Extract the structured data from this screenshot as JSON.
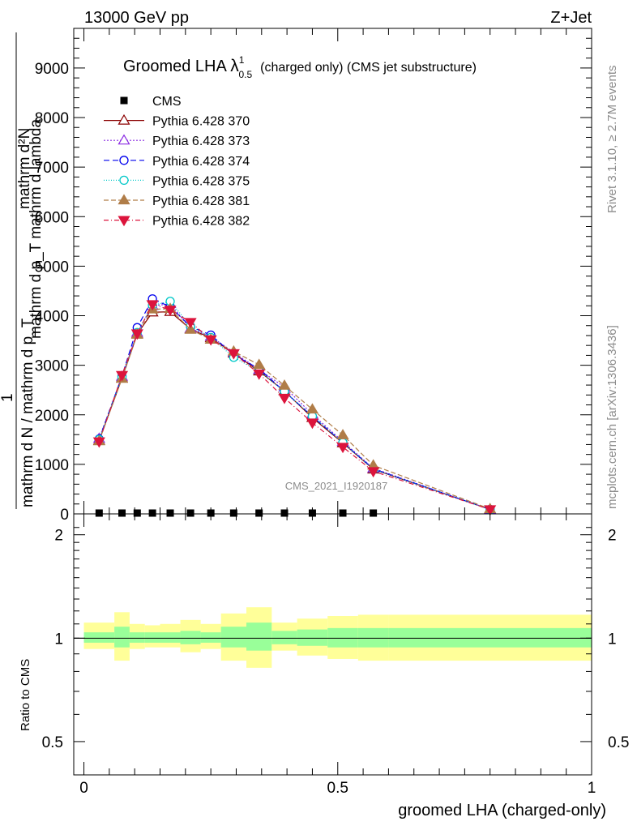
{
  "header": {
    "left": "13000 GeV pp",
    "right": "Z+Jet"
  },
  "side_labels": {
    "rivet": "Rivet 3.1.10, ≥ 2.7M events",
    "mcplots": "mcplots.cern.ch [arXiv:1306.3436]"
  },
  "watermark": "CMS_2021_I1920187",
  "chart_data": [
    {
      "type": "line",
      "title_main": "Groomed LHA ",
      "title_lambda": "λ",
      "title_sup": "1",
      "title_sub": "0.5",
      "title_rest": "(charged only) (CMS jet substructure)",
      "ylabel_lines": [
        "mathrm d²N",
        "mathrm d p_T mathrm d lambda",
        "1",
        "mathrm d N / mathrm d p_T"
      ],
      "ylim": [
        0,
        9800
      ],
      "yticks": [
        0,
        1000,
        2000,
        3000,
        4000,
        5000,
        6000,
        7000,
        8000,
        9000
      ],
      "ytick_labels": [
        "0",
        "1000",
        "2000",
        "3000",
        "4000",
        "5000",
        "6000",
        "7000",
        "8000",
        "9000"
      ],
      "xlim": [
        -0.02,
        1.0
      ],
      "x": [
        0.03,
        0.075,
        0.105,
        0.135,
        0.17,
        0.21,
        0.25,
        0.295,
        0.345,
        0.395,
        0.45,
        0.51,
        0.57,
        0.8
      ],
      "series": [
        {
          "name": "CMS",
          "color": "#000000",
          "marker": "square",
          "dash": "",
          "values": [
            0,
            0,
            0,
            0,
            0,
            0,
            0,
            0,
            0,
            0,
            0,
            0,
            0,
            null
          ]
        },
        {
          "name": "Pythia 6.428 370",
          "color": "#8b0000",
          "marker": "triangle-up-open",
          "dash": "",
          "values": [
            1480,
            2740,
            3630,
            4070,
            4080,
            3730,
            3550,
            3240,
            2880,
            2480,
            1940,
            1430,
            900,
            90
          ]
        },
        {
          "name": "Pythia 6.428 373",
          "color": "#8a2be2",
          "marker": "triangle-up-open",
          "dash": "2,2",
          "values": [
            1520,
            2770,
            3660,
            4200,
            4240,
            3740,
            3580,
            3260,
            2910,
            2560,
            2010,
            1460,
            920,
            90
          ]
        },
        {
          "name": "Pythia 6.428 374",
          "color": "#0000ee",
          "marker": "circle-open",
          "dash": "7,4",
          "values": [
            1510,
            2780,
            3760,
            4340,
            4180,
            3780,
            3610,
            3210,
            2930,
            2470,
            1970,
            1440,
            910,
            90
          ]
        },
        {
          "name": "Pythia 6.428 375",
          "color": "#00c8c8",
          "marker": "circle-open",
          "dash": "1,2",
          "values": [
            1500,
            2760,
            3660,
            4210,
            4290,
            3790,
            3560,
            3160,
            2880,
            2470,
            1970,
            1440,
            900,
            90
          ]
        },
        {
          "name": "Pythia 6.428 381",
          "color": "#b07d48",
          "marker": "triangle-up",
          "dash": "6,3",
          "values": [
            1470,
            2730,
            3620,
            4130,
            4140,
            3720,
            3520,
            3280,
            3010,
            2590,
            2110,
            1590,
            980,
            100
          ]
        },
        {
          "name": "Pythia 6.428 382",
          "color": "#dc143c",
          "marker": "triangle-down",
          "dash": "6,3,1,3",
          "values": [
            1460,
            2800,
            3640,
            4230,
            4120,
            3870,
            3520,
            3240,
            2830,
            2340,
            1840,
            1350,
            860,
            90
          ]
        }
      ]
    },
    {
      "type": "area",
      "ylabel": "Ratio to CMS",
      "ylim": [
        0.4,
        2.3
      ],
      "log_scale": true,
      "yticks": [
        0.5,
        1,
        2
      ],
      "ytick_labels": [
        "0.5",
        "1",
        "2"
      ],
      "xlabel": "groomed LHA (charged-only)",
      "xticks": [
        0,
        0.5,
        1
      ],
      "xtick_labels": [
        "0",
        "0.5",
        "1"
      ],
      "bin_edges": [
        0,
        0.06,
        0.09,
        0.12,
        0.15,
        0.19,
        0.23,
        0.27,
        0.32,
        0.37,
        0.42,
        0.48,
        0.54,
        0.6,
        1.0
      ],
      "band_outer": [
        [
          0.93,
          1.11
        ],
        [
          0.86,
          1.19
        ],
        [
          0.93,
          1.1
        ],
        [
          0.94,
          1.09
        ],
        [
          0.94,
          1.1
        ],
        [
          0.91,
          1.13
        ],
        [
          0.93,
          1.1
        ],
        [
          0.86,
          1.18
        ],
        [
          0.82,
          1.23
        ],
        [
          0.92,
          1.11
        ],
        [
          0.89,
          1.14
        ],
        [
          0.87,
          1.16
        ],
        [
          0.86,
          1.17
        ],
        [
          0.86,
          1.17
        ]
      ],
      "band_inner": [
        [
          0.97,
          1.04
        ],
        [
          0.94,
          1.08
        ],
        [
          0.97,
          1.04
        ],
        [
          0.97,
          1.04
        ],
        [
          0.97,
          1.04
        ],
        [
          0.96,
          1.05
        ],
        [
          0.97,
          1.04
        ],
        [
          0.94,
          1.08
        ],
        [
          0.92,
          1.11
        ],
        [
          0.96,
          1.05
        ],
        [
          0.95,
          1.06
        ],
        [
          0.94,
          1.07
        ],
        [
          0.94,
          1.07
        ],
        [
          0.94,
          1.07
        ]
      ],
      "reference_line": 1,
      "band_colors": {
        "outer": "#ffff99",
        "inner": "#99ff99"
      }
    }
  ]
}
